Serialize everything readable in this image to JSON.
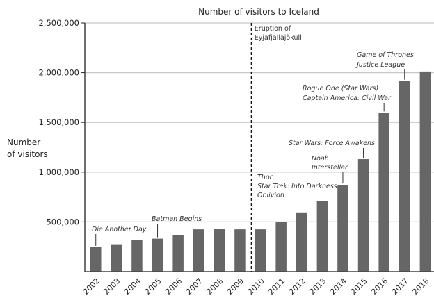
{
  "chart_data": {
    "type": "bar",
    "title": "Number of visitors to Iceland",
    "xlabel": "",
    "ylabel": "Number of visitors",
    "ylabel_lines": [
      "Number",
      "of visitors"
    ],
    "ylim": [
      0,
      2500000
    ],
    "yticks": [
      500000,
      1000000,
      1500000,
      2000000,
      2500000
    ],
    "ytick_labels": [
      "500,000",
      "1,000,000",
      "1,500,000",
      "2,000,000",
      "2,500,000"
    ],
    "grid": true,
    "categories": [
      "2002",
      "2003",
      "2004",
      "2005",
      "2006",
      "2007",
      "2008",
      "2009",
      "2010",
      "2011",
      "2012",
      "2013",
      "2014",
      "2015",
      "2016",
      "2017",
      "2018"
    ],
    "values": [
      245000,
      275000,
      317000,
      331000,
      369000,
      425000,
      429000,
      425000,
      425000,
      497000,
      595000,
      709000,
      872000,
      1131000,
      1597000,
      1916000,
      2012000
    ],
    "bar_color": "#666666",
    "event_line": {
      "category": "2010",
      "lines": [
        "Eruption of",
        "Eyjafjallajökull"
      ]
    },
    "annotations": [
      {
        "category": "2002",
        "lines": [
          "Die Another Day"
        ]
      },
      {
        "category": "2005",
        "lines": [
          "Batman Begins"
        ]
      },
      {
        "category": "2013",
        "lines": [
          "Thor",
          "Star Trek: Into Darkness",
          "Oblivion"
        ]
      },
      {
        "category": "2014",
        "lines": [
          "Noah",
          "Interstellar"
        ]
      },
      {
        "category": "2015",
        "lines": [
          "Star Wars: Force Awakens"
        ]
      },
      {
        "category": "2016",
        "lines": [
          "Rogue One (Star Wars)",
          "Captain America: Civil War"
        ]
      },
      {
        "category": "2017",
        "lines": [
          "Game of Thrones",
          "Justice League"
        ]
      }
    ]
  }
}
